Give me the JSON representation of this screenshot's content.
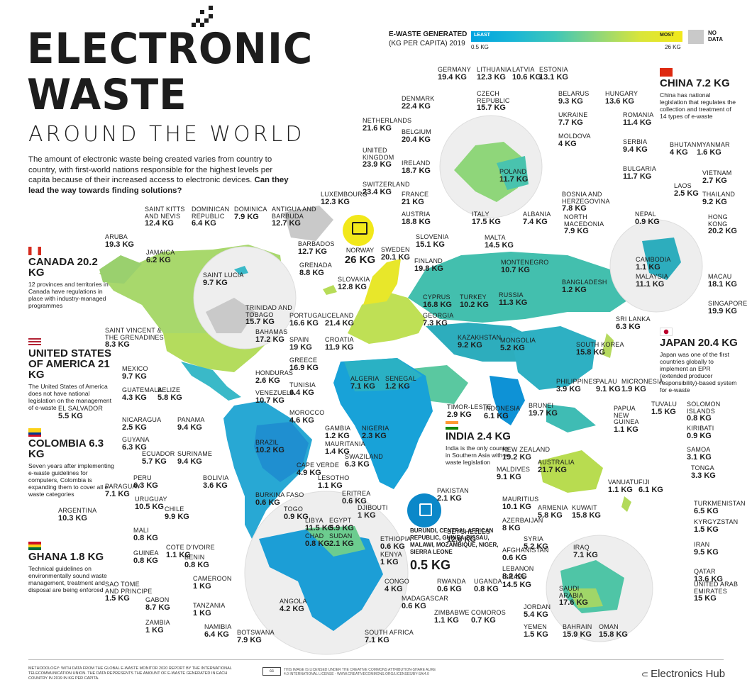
{
  "header": {
    "title_line1": "ELECTRONIC",
    "title_line2": "WASTE",
    "subtitle": "AROUND THE WORLD",
    "intro": "The amount of electronic waste being created varies from country to country, with first-world nations responsible for the highest levels per capita because of their increased access to electronic devices.",
    "intro_bold": "Can they lead the way towards finding solutions?"
  },
  "legend": {
    "title": "E-WASTE GENERATED",
    "subtitle": "(KG PER CAPITA) 2019",
    "least": "LEAST",
    "most": "MOST",
    "min": "0.5 KG",
    "max": "26 KG",
    "no_data": "NO\nDATA"
  },
  "colors": {
    "low": "#00a3e0",
    "mid": "#3fc7b8",
    "high": "#f2e81a",
    "no_data": "#c9c9c9",
    "text": "#1d1d1d"
  },
  "features": {
    "canada": {
      "title": "CANADA 20.2 KG",
      "desc": "12 provinces and territories in Canada have regulations in place with industry-managed programmes"
    },
    "usa": {
      "title": "UNITED STATES OF AMERICA 21 KG",
      "desc": "The United States of America does not have national legislation on the management of e-waste"
    },
    "colombia": {
      "title": "COLOMBIA 6.3 KG",
      "desc": "Seven years after implementing e-waste guidelines for computers, Colombia is expanding them to cover all e-waste categories"
    },
    "ghana": {
      "title": "GHANA 1.8 KG",
      "desc": "Technical guidelines on environmentally sound waste management, treatment and disposal are being enforced"
    },
    "china": {
      "title": "CHINA 7.2 KG",
      "desc": "China has national legislation that regulates the collection and treatment of 14 types of e-waste"
    },
    "japan": {
      "title": "JAPAN 20.4 KG",
      "desc": "Japan was one of the first countries globally to implement an EPR (extended producer responsibility)-based system for e-waste"
    },
    "india": {
      "title": "INDIA 2.4 KG",
      "desc": "India is the only country in Southern Asia with e-waste legislation"
    },
    "norway": {
      "name": "NORWAY",
      "value": "26 KG"
    },
    "lowest": {
      "name": "BURUNDI, CENTRAL AFRICAN REPUBLIC, GUINEA-BISSAU, MALAWI, MOZAMBIQUE, NIGER, SIERRA LEONE",
      "value": "0.5 KG"
    }
  },
  "countries": [
    {
      "name": "GERMANY",
      "value": "19.4 KG"
    },
    {
      "name": "LITHUANIA",
      "value": "12.3 KG"
    },
    {
      "name": "LATVIA",
      "value": "10.6 KG"
    },
    {
      "name": "ESTONIA",
      "value": "13.1 KG"
    },
    {
      "name": "DENMARK",
      "value": "22.4 KG"
    },
    {
      "name": "CZECH\nREPUBLIC",
      "value": "15.7 KG"
    },
    {
      "name": "BELARUS",
      "value": "9.3 KG"
    },
    {
      "name": "HUNGARY",
      "value": "13.6 KG"
    },
    {
      "name": "NETHERLANDS",
      "value": "21.6 KG"
    },
    {
      "name": "UKRAINE",
      "value": "7.7 KG"
    },
    {
      "name": "ROMANIA",
      "value": "11.4 KG"
    },
    {
      "name": "BELGIUM",
      "value": "20.4 KG"
    },
    {
      "name": "MOLDOVA",
      "value": "4 KG"
    },
    {
      "name": "UNITED\nKINGDOM",
      "value": "23.9 KG"
    },
    {
      "name": "SERBIA",
      "value": "9.4 KG"
    },
    {
      "name": "IRELAND",
      "value": "18.7 KG"
    },
    {
      "name": "POLAND",
      "value": "11.7 KG"
    },
    {
      "name": "BULGARIA",
      "value": "11.7 KG"
    },
    {
      "name": "SWITZERLAND",
      "value": "23.4 KG"
    },
    {
      "name": "FRANCE",
      "value": "21 KG"
    },
    {
      "name": "BOSNIA AND\nHERZEGOVINA",
      "value": "7.8 KG"
    },
    {
      "name": "LUXEMBOURG",
      "value": "12.3 KG"
    },
    {
      "name": "AUSTRIA",
      "value": "18.8 KG"
    },
    {
      "name": "ALBANIA",
      "value": "7.4 KG"
    },
    {
      "name": "NORTH\nMACEDONIA",
      "value": "7.9 KG"
    },
    {
      "name": "ITALY",
      "value": "17.5 KG"
    },
    {
      "name": "MALTA",
      "value": "14.5 KG"
    },
    {
      "name": "SLOVENIA",
      "value": "15.1 KG"
    },
    {
      "name": "MONTENEGRO",
      "value": "10.7 KG"
    },
    {
      "name": "SWEDEN",
      "value": "20.1 KG"
    },
    {
      "name": "FINLAND",
      "value": "19.8 KG"
    },
    {
      "name": "RUSSIA",
      "value": "11.3 KG"
    },
    {
      "name": "SLOVAKIA",
      "value": "12.8 KG"
    },
    {
      "name": "CYPRUS",
      "value": "16.8 KG"
    },
    {
      "name": "TURKEY",
      "value": "10.2 KG"
    },
    {
      "name": "GEORGIA",
      "value": "7.3 KG"
    },
    {
      "name": "ICELAND",
      "value": "21.4 KG"
    },
    {
      "name": "PORTUGAL",
      "value": "16.6 KG"
    },
    {
      "name": "SPAIN",
      "value": "19 KG"
    },
    {
      "name": "CROATIA",
      "value": "11.9 KG"
    },
    {
      "name": "KAZAKHSTAN",
      "value": "9.2 KG"
    },
    {
      "name": "MONGOLIA",
      "value": "5.2 KG"
    },
    {
      "name": "GREECE",
      "value": "16.9 KG"
    },
    {
      "name": "TUNISIA",
      "value": "6.4 KG"
    },
    {
      "name": "ALGERIA",
      "value": "7.1 KG"
    },
    {
      "name": "SENEGAL",
      "value": "1.2 KG"
    },
    {
      "name": "MOROCCO",
      "value": "4.6 KG"
    },
    {
      "name": "BHUTAN",
      "value": "4 KG"
    },
    {
      "name": "MYANMAR",
      "value": "1.6 KG"
    },
    {
      "name": "VIETNAM",
      "value": "2.7 KG"
    },
    {
      "name": "LAOS",
      "value": "2.5 KG"
    },
    {
      "name": "THAILAND",
      "value": "9.2 KG"
    },
    {
      "name": "NEPAL",
      "value": "0.9 KG"
    },
    {
      "name": "HONG\nKONG",
      "value": "20.2 KG"
    },
    {
      "name": "CAMBODIA",
      "value": "1.1 KG"
    },
    {
      "name": "MACAU",
      "value": "18.1 KG"
    },
    {
      "name": "MALAYSIA",
      "value": "11.1 KG"
    },
    {
      "name": "BANGLADESH",
      "value": "1.2 KG"
    },
    {
      "name": "SINGAPORE",
      "value": "19.9 KG"
    },
    {
      "name": "SRI LANKA",
      "value": "6.3 KG"
    },
    {
      "name": "SOUTH KOREA",
      "value": "15.8 KG"
    },
    {
      "name": "PHILIPPINES",
      "value": "3.9 KG"
    },
    {
      "name": "PALAU",
      "value": "9.1 KG"
    },
    {
      "name": "MICRONESIA",
      "value": "1.9 KG"
    },
    {
      "name": "BRUNEI",
      "value": "19.7 KG"
    },
    {
      "name": "INDONESIA",
      "value": "6.1 KG"
    },
    {
      "name": "PAPUA\nNEW\nGUINEA",
      "value": "1.1 KG"
    },
    {
      "name": "TUVALU",
      "value": "1.5 KG"
    },
    {
      "name": "SOLOMON\nISLANDS",
      "value": "0.8 KG"
    },
    {
      "name": "KIRIBATI",
      "value": "0.9 KG"
    },
    {
      "name": "SAMOA",
      "value": "3.1 KG"
    },
    {
      "name": "TONGA",
      "value": "3.3 KG"
    },
    {
      "name": "FIJI",
      "value": "6.1 KG"
    },
    {
      "name": "VANUATU",
      "value": "1.1 KG"
    },
    {
      "name": "AUSTRALIA",
      "value": "21.7 KG"
    },
    {
      "name": "NEW ZEALAND",
      "value": "19.2 KG"
    },
    {
      "name": "MALDIVES",
      "value": "9.1 KG"
    },
    {
      "name": "TIMOR-LESTE",
      "value": "2.9 KG"
    },
    {
      "name": "PAKISTAN",
      "value": "2.1 KG"
    },
    {
      "name": "SEYCHELLES",
      "value": "12.6 KG"
    },
    {
      "name": "MAURITIUS",
      "value": "10.1 KG"
    },
    {
      "name": "AZERBAIJAN",
      "value": "8 KG"
    },
    {
      "name": "ARMENIA",
      "value": "5.8 KG"
    },
    {
      "name": "KUWAIT",
      "value": "15.8 KG"
    },
    {
      "name": "TURKMENISTAN",
      "value": "6.5 KG"
    },
    {
      "name": "KYRGYZSTAN",
      "value": "1.5 KG"
    },
    {
      "name": "AFGHANISTAN",
      "value": "0.6 KG"
    },
    {
      "name": "SYRIA",
      "value": "5.2 KG"
    },
    {
      "name": "IRAQ",
      "value": "7.1 KG"
    },
    {
      "name": "IRAN",
      "value": "9.5 KG"
    },
    {
      "name": "LEBANON",
      "value": "8.2 KG"
    },
    {
      "name": "QATAR",
      "value": "13.6 KG"
    },
    {
      "name": "ISRAEL",
      "value": "14.5 KG"
    },
    {
      "name": "SAUDI\nARABIA",
      "value": "17.6 KG"
    },
    {
      "name": "UNITED ARAB\nEMIRATES",
      "value": "15 KG"
    },
    {
      "name": "JORDAN",
      "value": "5.4 KG"
    },
    {
      "name": "YEMEN",
      "value": "1.5 KG"
    },
    {
      "name": "BAHRAIN",
      "value": "15.9 KG"
    },
    {
      "name": "OMAN",
      "value": "15.8 KG"
    },
    {
      "name": "SAINT KITTS\nAND NEVIS",
      "value": "12.4 KG"
    },
    {
      "name": "DOMINICAN\nREPUBLIC",
      "value": "6.4 KG"
    },
    {
      "name": "DOMINICA",
      "value": "7.9 KG"
    },
    {
      "name": "ANTIGUA AND\nBARBUDA",
      "value": "12.7 KG"
    },
    {
      "name": "ARUBA",
      "value": "19.3 KG"
    },
    {
      "name": "JAMAICA",
      "value": "6.2 KG"
    },
    {
      "name": "BARBADOS",
      "value": "12.7 KG"
    },
    {
      "name": "SAINT LUCIA",
      "value": "9.7 KG"
    },
    {
      "name": "GRENADA",
      "value": "8.8 KG"
    },
    {
      "name": "TRINIDAD AND\nTOBAGO",
      "value": "15.7 KG"
    },
    {
      "name": "SAINT VINCENT &\nTHE GRENADINES",
      "value": "8.3 KG"
    },
    {
      "name": "BAHAMAS",
      "value": "17.2 KG"
    },
    {
      "name": "MEXICO",
      "value": "9.7 KG"
    },
    {
      "name": "HONDURAS",
      "value": "2.6 KG"
    },
    {
      "name": "GUATEMALA",
      "value": "4.3 KG"
    },
    {
      "name": "BELIZE",
      "value": "5.8 KG"
    },
    {
      "name": "VENEZUELA",
      "value": "10.7 KG"
    },
    {
      "name": "EL SALVADOR",
      "value": "5.5 KG"
    },
    {
      "name": "NICARAGUA",
      "value": "2.5 KG"
    },
    {
      "name": "PANAMA",
      "value": "9.4 KG"
    },
    {
      "name": "GUYANA",
      "value": "6.3 KG"
    },
    {
      "name": "ECUADOR",
      "value": "5.7 KG"
    },
    {
      "name": "SURINAME",
      "value": "9.4 KG"
    },
    {
      "name": "BRAZIL",
      "value": "10.2 KG"
    },
    {
      "name": "PERU",
      "value": "6.3 KG"
    },
    {
      "name": "BOLIVIA",
      "value": "3.6 KG"
    },
    {
      "name": "PARAGUAY",
      "value": "7.1 KG"
    },
    {
      "name": "URUGUAY",
      "value": "10.5 KG"
    },
    {
      "name": "ARGENTINA",
      "value": "10.3 KG"
    },
    {
      "name": "CHILE",
      "value": "9.9 KG"
    },
    {
      "name": "CAPE VERDE",
      "value": "4.9 KG"
    },
    {
      "name": "GAMBIA",
      "value": "1.2 KG"
    },
    {
      "name": "NIGERIA",
      "value": "2.3 KG"
    },
    {
      "name": "MAURITANIA",
      "value": "1.4 KG"
    },
    {
      "name": "SWAZILAND",
      "value": "6.3 KG"
    },
    {
      "name": "LESOTHO",
      "value": "1.1 KG"
    },
    {
      "name": "BURKINA FASO",
      "value": "0.6 KG"
    },
    {
      "name": "ERITREA",
      "value": "0.6 KG"
    },
    {
      "name": "DJIBOUTI",
      "value": "1 KG"
    },
    {
      "name": "TOGO",
      "value": "0.9 KG"
    },
    {
      "name": "LIBYA",
      "value": "11.5 KG"
    },
    {
      "name": "EGYPT",
      "value": "5.9 KG"
    },
    {
      "name": "MALI",
      "value": "0.8 KG"
    },
    {
      "name": "COTE D'IVOIRE",
      "value": "1.1 KG"
    },
    {
      "name": "CHAD",
      "value": "0.8 KG"
    },
    {
      "name": "SUDAN",
      "value": "2.1 KG"
    },
    {
      "name": "ETHIOPIA",
      "value": "0.6 KG"
    },
    {
      "name": "GUINEA",
      "value": "0.8 KG"
    },
    {
      "name": "BENIN",
      "value": "0.8 KG"
    },
    {
      "name": "KENYA",
      "value": "1 KG"
    },
    {
      "name": "CAMEROON",
      "value": "1 KG"
    },
    {
      "name": "SAO TOME\nAND PRINCIPE",
      "value": "1.5 KG"
    },
    {
      "name": "CONGO",
      "value": "4 KG"
    },
    {
      "name": "RWANDA",
      "value": "0.6 KG"
    },
    {
      "name": "UGANDA",
      "value": "0.8 KG"
    },
    {
      "name": "GABON",
      "value": "8.7 KG"
    },
    {
      "name": "MADAGASCAR",
      "value": "0.6 KG"
    },
    {
      "name": "TANZANIA",
      "value": "1 KG"
    },
    {
      "name": "ANGOLA",
      "value": "4.2 KG"
    },
    {
      "name": "ZIMBABWE",
      "value": "1.1 KG"
    },
    {
      "name": "COMOROS",
      "value": "0.7 KG"
    },
    {
      "name": "ZAMBIA",
      "value": "1 KG"
    },
    {
      "name": "NAMIBIA",
      "value": "6.4 KG"
    },
    {
      "name": "BOTSWANA",
      "value": "7.9 KG"
    },
    {
      "name": "SOUTH AFRICA",
      "value": "7.1 KG"
    }
  ],
  "footer": {
    "methodology": "METHODOLOGY: WITH DATA FROM THE GLOBAL E-WASTE MONITOR 2020 REPORT BY THE INTERNATIONAL TELECOMMUNICATION UNION. THE DATA REPRESENTS THE AMOUNT OF E-WASTE GENERATED IN EACH COUNTRY IN 2019 IN KG PER CAPITA.",
    "license": "THIS IMAGE IS LICENSED UNDER THE CREATIVE COMMONS ATTRIBUTION-SHARE ALIKE 4.0 INTERNATIONAL LICENSE - WWW.CREATIVECOMMONS.ORG/LICENSES/BY-SA/4.0",
    "cc": "cc",
    "brand": "Electronics Hub"
  }
}
